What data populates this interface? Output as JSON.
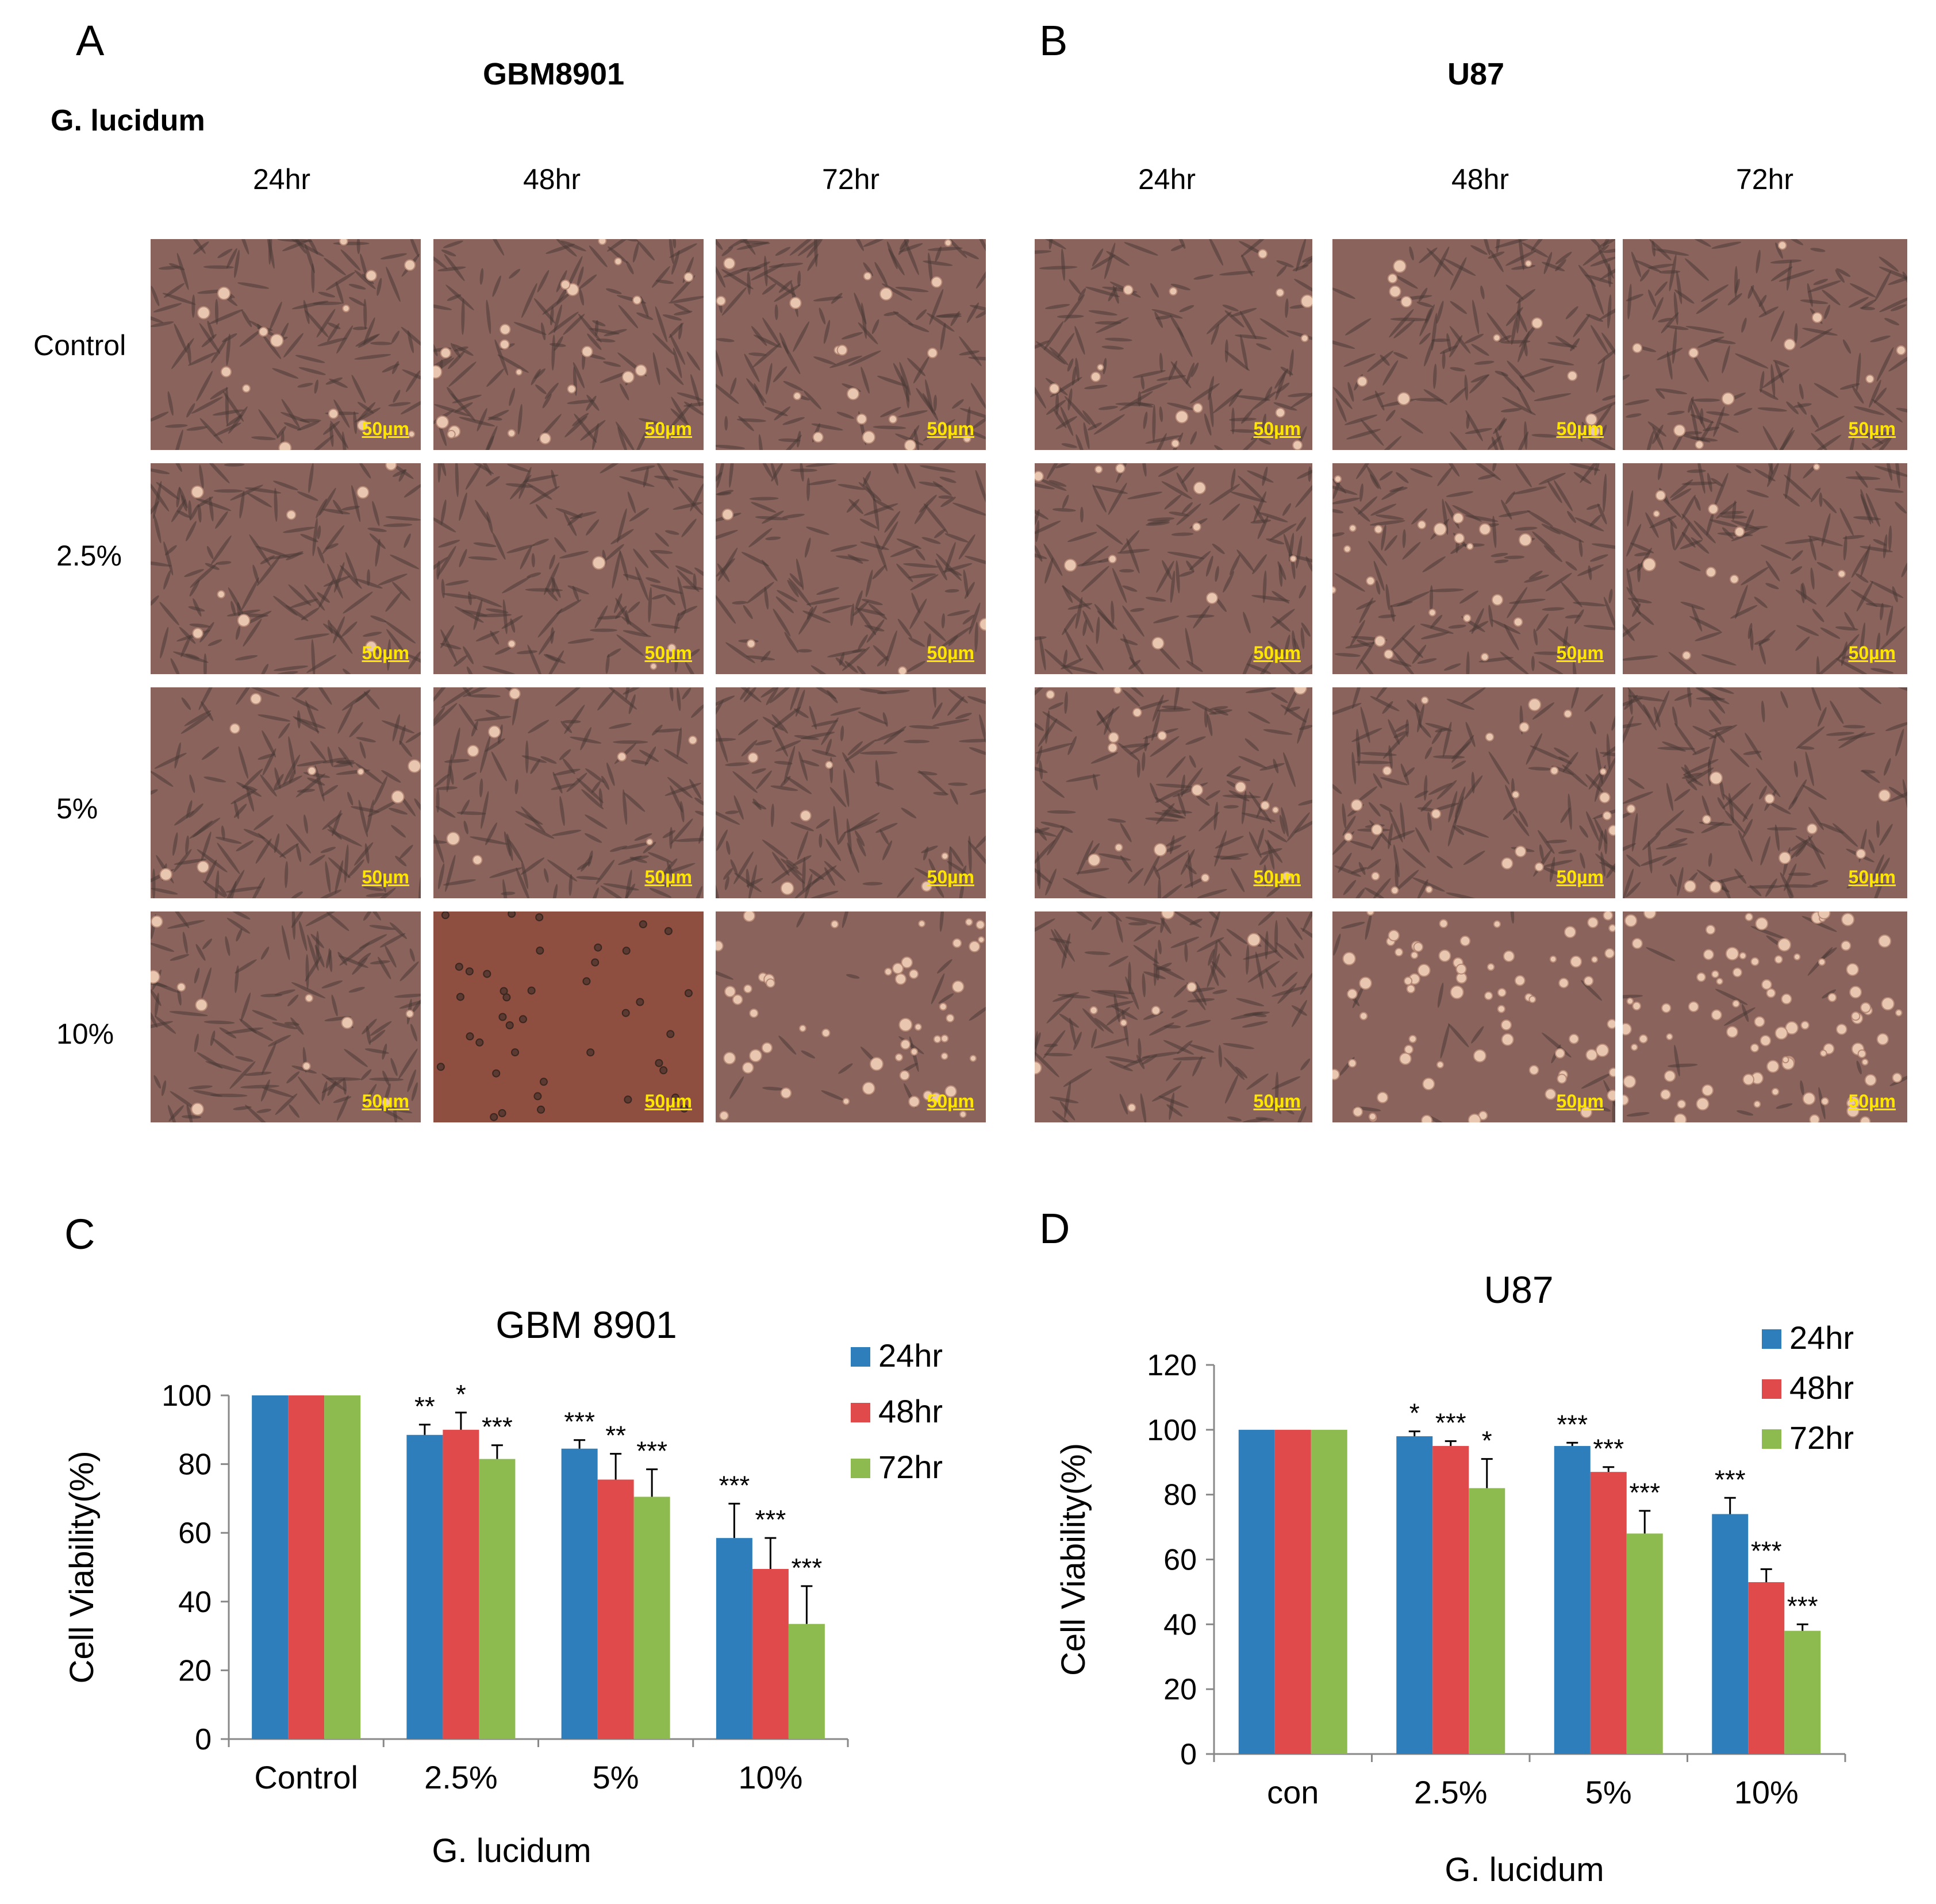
{
  "panels": {
    "A": {
      "letter": "A",
      "cell_line": "GBM8901"
    },
    "B": {
      "letter": "B",
      "cell_line": "U87"
    },
    "C": {
      "letter": "C"
    },
    "D": {
      "letter": "D"
    }
  },
  "treatment_label": "G. lucidum",
  "time_headers": [
    "24hr",
    "48hr",
    "72hr"
  ],
  "row_labels": [
    "Control",
    "2.5%",
    "5%",
    "10%"
  ],
  "scale_bar": "50µm",
  "colors": {
    "s24": "#2e7ebc",
    "s48": "#e04a4a",
    "s72": "#8dbb4f",
    "micro_base": "#8a635c",
    "micro_dark": "#8f4f40"
  },
  "chart_data": [
    {
      "type": "bar",
      "title": "GBM 8901",
      "xlabel": "G. lucidum",
      "ylabel": "Cell   Viability(%)",
      "ylim": [
        0,
        100
      ],
      "yticks": [
        0,
        20,
        40,
        60,
        80,
        100
      ],
      "categories": [
        "Control",
        "2.5%",
        "5%",
        "10%"
      ],
      "series": [
        {
          "name": "24hr",
          "values": [
            100,
            88.5,
            84.5,
            58.5
          ],
          "errors": [
            0,
            3,
            2.5,
            10
          ],
          "sig": [
            "",
            "**",
            "***",
            "***"
          ]
        },
        {
          "name": "48hr",
          "values": [
            100,
            90,
            75.5,
            49.5
          ],
          "errors": [
            0,
            5,
            7.5,
            9
          ],
          "sig": [
            "",
            "*",
            "**",
            "***"
          ]
        },
        {
          "name": "72hr",
          "values": [
            100,
            81.5,
            70.5,
            33.5
          ],
          "errors": [
            0,
            4,
            8,
            11
          ],
          "sig": [
            "",
            "***",
            "***",
            "***"
          ]
        }
      ],
      "legend": "top-right"
    },
    {
      "type": "bar",
      "title": "U87",
      "xlabel": "G. lucidum",
      "ylabel": "Cell   Viability(%)",
      "ylim": [
        0,
        120
      ],
      "yticks": [
        0,
        20,
        40,
        60,
        80,
        100,
        120
      ],
      "categories": [
        "con",
        "2.5%",
        "5%",
        "10%"
      ],
      "series": [
        {
          "name": "24hr",
          "values": [
            100,
            98,
            95,
            74
          ],
          "errors": [
            0,
            1.5,
            1,
            5
          ],
          "sig": [
            "",
            "*",
            "***",
            "***"
          ]
        },
        {
          "name": "48hr",
          "values": [
            100,
            95,
            87,
            53
          ],
          "errors": [
            0,
            1.5,
            1.5,
            4
          ],
          "sig": [
            "",
            "***",
            "***",
            "***"
          ]
        },
        {
          "name": "72hr",
          "values": [
            100,
            82,
            68,
            38
          ],
          "errors": [
            0,
            9,
            7,
            2
          ],
          "sig": [
            "",
            "*",
            "***",
            "***"
          ]
        }
      ],
      "legend": "top-right"
    }
  ]
}
